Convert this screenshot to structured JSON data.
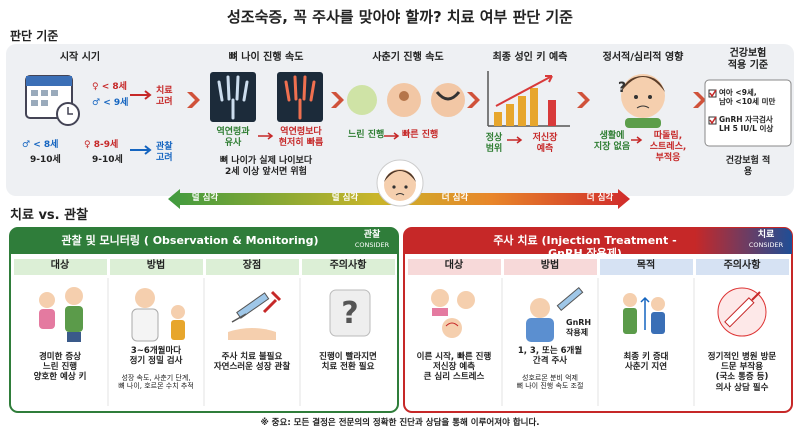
{
  "title": "성조숙증, 꼭 주사를 맞아야 할까? 치료 여부 판단 기준",
  "criteria_heading": "판단 기준",
  "start": {
    "title": "시작 시기",
    "treat_f": "♀ < 8세",
    "treat_m": "♂ < 9세",
    "treat_label": "치료\n고려",
    "obs_m": "♂ < 8세",
    "obs_m2": "9-10세",
    "obs_f": "♀ 8-9세",
    "obs_f2": "9-10세",
    "obs_label": "관찰\n고려"
  },
  "bone": {
    "title": "뼈 나이 진행 속도",
    "normal": "역연령과\n유사",
    "fast": "역연령보다\n현저히 빠름",
    "note": "뼈 나이가 실제 나이보다\n2세 이상 앞서면 위험"
  },
  "puberty": {
    "title": "사춘기 진행 속도",
    "slow": "느린 진행",
    "fast": "빠른 진행"
  },
  "height": {
    "title": "최종 성인 키 예측",
    "normal": "정상\n범위",
    "short": "저신장\n예측"
  },
  "emotion": {
    "title": "정서적/심리적 영향",
    "fine": "생활에\n지장 없음",
    "bad": "따돌림,\n스트레스,\n부적응"
  },
  "insurance": {
    "title": "건강보험\n적용 기준",
    "items": [
      "여아 <9세,\n남아 <10세 미만",
      "GnRH 자극검사\nLH 5 IU/L 이상"
    ],
    "result": "건강보험 적용"
  },
  "severity": [
    "덜 심각",
    "덜 심각",
    "더 심각",
    "더 심각"
  ],
  "comparison": {
    "heading": "치료 vs. 관찰",
    "observation": {
      "title": "관찰 및 모니터링 ( Observation & Monitoring)",
      "badge": "관찰",
      "badge_sub": "CONSIDER",
      "columns": [
        {
          "header": "대상",
          "text": "경미한 증상\n느린 진행\n양호한 예상 키"
        },
        {
          "header": "방법",
          "text": "3~6개월마다\n정기 정밀 검사",
          "sub": "성장 속도, 사춘기 단계,\n뼈 나이, 호르몬 수치 추적"
        },
        {
          "header": "장점",
          "text": "주사 치료 불필요\n자연스러운 성장 관찰"
        },
        {
          "header": "주의사항",
          "text": "진행이 빨라지면\n치료 전환 필요"
        }
      ]
    },
    "treatment": {
      "title": "주사 치료 (Injection Treatment - GnRH 작용제)",
      "badge": "치료",
      "badge_sub": "CONSIDER",
      "columns": [
        {
          "header": "대상",
          "text": "이른 시작, 빠른 진행\n저신장 예측\n큰 심리 스트레스"
        },
        {
          "header": "방법",
          "label": "GnRH\n작용제",
          "text": "1, 3, 또는 6개월\n간격 주사",
          "sub": "성호르몬 분비 억제\n뼈 나이 진행 속도 조절"
        },
        {
          "header": "목적",
          "text": "최종 키 증대\n사춘기 지연"
        },
        {
          "header": "주의사항",
          "text": "정기적인 병원 방문\n드문 부작용\n(국소 통증 등)\n의사 상담 필수"
        }
      ]
    }
  },
  "footer": "※ 중요: 모든 결정은 전문의의 정확한 진단과 상담을 통해 이루어져야 합니다."
}
